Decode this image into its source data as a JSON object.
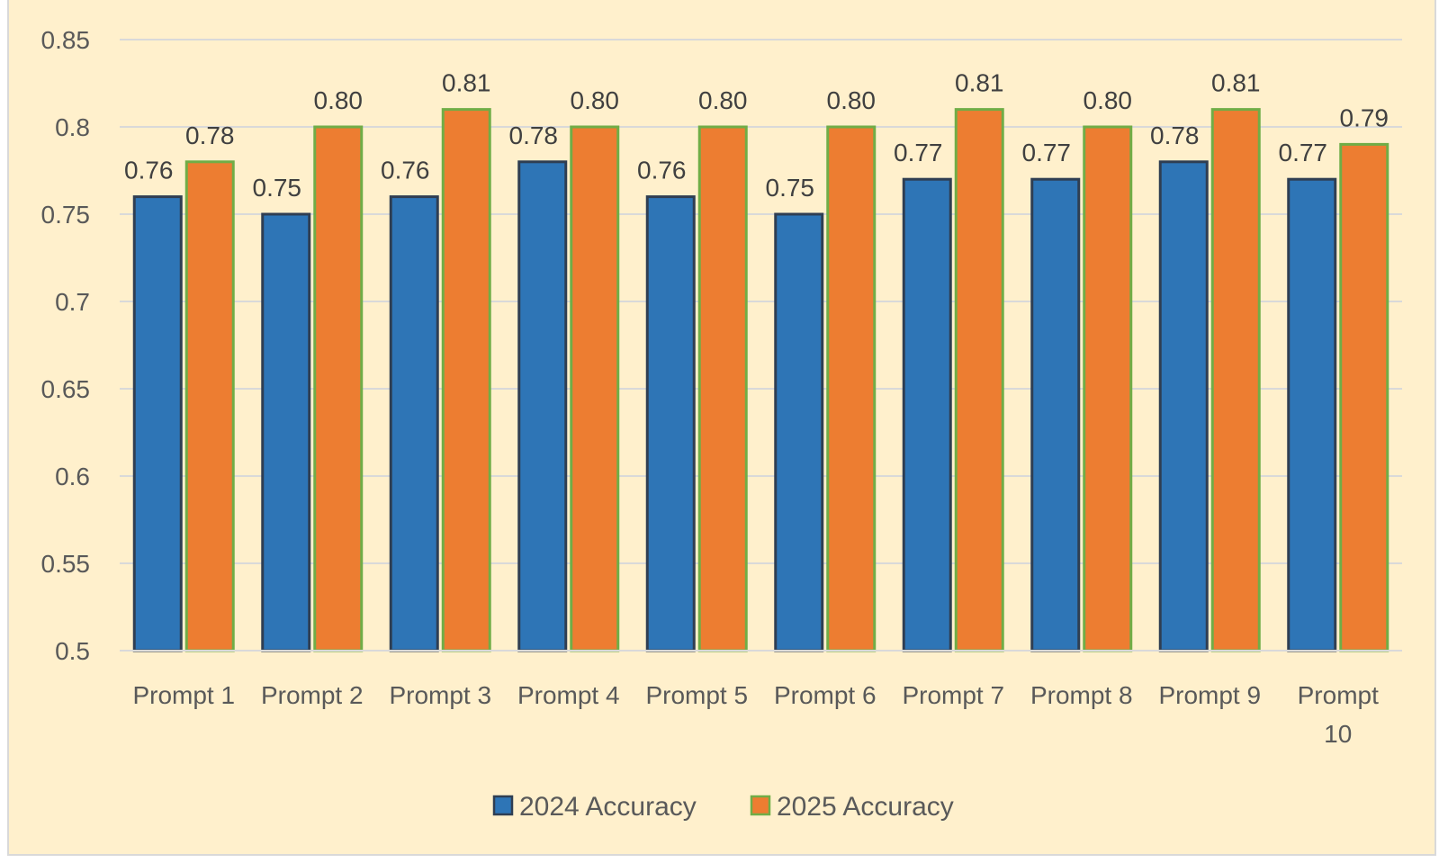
{
  "chart_data": {
    "type": "bar",
    "title": "",
    "xlabel": "",
    "ylabel": "",
    "ylim": [
      0.5,
      0.85
    ],
    "yticks": [
      "0.5",
      "0.55",
      "0.6",
      "0.65",
      "0.7",
      "0.75",
      "0.8",
      "0.85"
    ],
    "grid": true,
    "legend_position": "bottom",
    "categories": [
      "Prompt 1",
      "Prompt 2",
      "Prompt 3",
      "Prompt 4",
      "Prompt 5",
      "Prompt 6",
      "Prompt 7",
      "Prompt 8",
      "Prompt 9",
      "Prompt 10"
    ],
    "series": [
      {
        "name": "2024 Accuracy",
        "color": "#2E75B6",
        "border": "#2F3E52",
        "values": [
          0.76,
          0.75,
          0.76,
          0.78,
          0.76,
          0.75,
          0.77,
          0.77,
          0.78,
          0.77
        ],
        "labels": [
          "0.76",
          "0.75",
          "0.76",
          "0.78",
          "0.76",
          "0.75",
          "0.77",
          "0.77",
          "0.78",
          "0.77"
        ]
      },
      {
        "name": "2025 Accuracy",
        "color": "#ED7D31",
        "border": "#70AD47",
        "values": [
          0.78,
          0.8,
          0.81,
          0.8,
          0.8,
          0.8,
          0.81,
          0.8,
          0.81,
          0.79
        ],
        "labels": [
          "0.78",
          "0.80",
          "0.81",
          "0.80",
          "0.80",
          "0.80",
          "0.81",
          "0.80",
          "0.81",
          "0.79"
        ]
      }
    ]
  },
  "colors": {
    "background": "#FFF0CC",
    "gridline": "#D9D9D9",
    "text": "#595959",
    "data_label": "#404040"
  }
}
